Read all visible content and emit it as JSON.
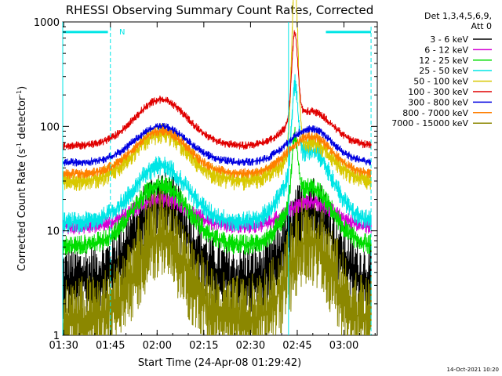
{
  "chart_data": {
    "type": "line",
    "title": "RHESSI Observing Summary Count Rates, Corrected",
    "xlabel": "Start Time (24-Apr-08 01:29:42)",
    "ylabel_main": "Corrected Count Rate (s",
    "ylabel_sup1": "-1",
    "ylabel_mid": " detector",
    "ylabel_sup2": "-1",
    "ylabel_end": ")",
    "yscale": "log",
    "ylim": [
      1,
      1000
    ],
    "xlim_minutes": [
      0,
      101
    ],
    "x_ticks": [
      "01:30",
      "01:45",
      "02:00",
      "02:15",
      "02:30",
      "02:45",
      "03:00"
    ],
    "x_tick_minutes": [
      0.3,
      15.3,
      30.3,
      45.3,
      60.3,
      75.3,
      90.3
    ],
    "y_ticks": [
      "1",
      "10",
      "100",
      "1000"
    ],
    "y_tick_values": [
      1,
      10,
      100,
      1000
    ],
    "legend_header": [
      "Det 1,3,4,5,6,9,",
      "Att 0"
    ],
    "legend_placement": "right",
    "footer_date": "14-Oct-2021 10:20",
    "night_marker": "N",
    "flag_bars": [
      {
        "from": 0,
        "to": 14.5,
        "y": 800
      },
      {
        "from": 84.5,
        "to": 99,
        "y": 800
      }
    ],
    "night_lines_minutes": [
      15.3,
      99
    ],
    "saa_line_minutes": [
      0,
      72.5
    ],
    "series": [
      {
        "name": "3 - 6 keV",
        "color": "#000000",
        "base": 3.2,
        "peak1": 18,
        "peak2": 16,
        "spike": 0,
        "noise": 0.35
      },
      {
        "name": "6 - 12 keV",
        "color": "#d400d4",
        "base": 11,
        "peak1": 20,
        "peak2": 19,
        "spike": 0,
        "noise": 0.08
      },
      {
        "name": "12 - 25 keV",
        "color": "#00dd00",
        "base": 7.2,
        "peak1": 28,
        "peak2": 26,
        "spike": 1.4,
        "noise": 0.1
      },
      {
        "name": "25 - 50 keV",
        "color": "#00e5e5",
        "base": 12,
        "peak1": 42,
        "peak2": 60,
        "spike": 1.8,
        "noise": 0.1
      },
      {
        "name": "50 - 100 keV",
        "color": "#d8c800",
        "base": 30,
        "peak1": 85,
        "peak2": 70,
        "spike": 3.8,
        "noise": 0.1
      },
      {
        "name": "100 - 300 keV",
        "color": "#e00000",
        "base": 65,
        "peak1": 180,
        "peak2": 140,
        "spike": 1.9,
        "noise": 0.04
      },
      {
        "name": "300 - 800 keV",
        "color": "#0000e0",
        "base": 45,
        "peak1": 100,
        "peak2": 95,
        "spike": 0,
        "noise": 0.04
      },
      {
        "name": "800 - 7000 keV",
        "color": "#ff7f00",
        "base": 35,
        "peak1": 90,
        "peak2": 80,
        "spike": 0,
        "noise": 0.05
      },
      {
        "name": "7000 - 15000 keV",
        "color": "#8b8700",
        "base": 1.3,
        "peak1": 9,
        "peak2": 8.5,
        "spike": 0,
        "noise": 0.45
      }
    ]
  }
}
